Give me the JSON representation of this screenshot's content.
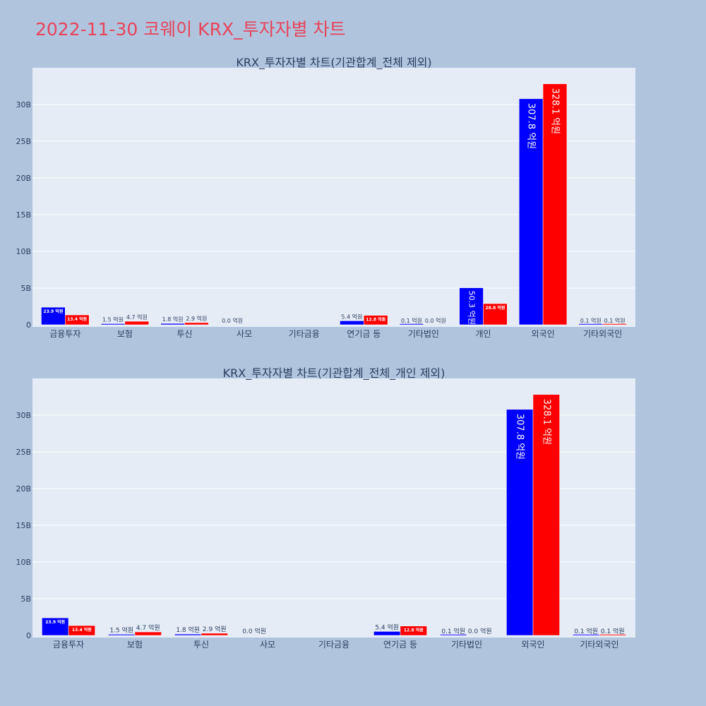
{
  "page": {
    "title": "2022-11-30 코웨이 KRX_투자자별 차트"
  },
  "chart_data": [
    {
      "type": "bar",
      "title": "KRX_투자자별 차트(기관합계_전체 제외)",
      "categories": [
        "금융투자",
        "보험",
        "투신",
        "사모",
        "기타금융",
        "연기금 등",
        "기타법인",
        "개인",
        "외국인",
        "기타외국인"
      ],
      "series": [
        {
          "color": "#0000ff",
          "values": [
            2.39,
            0.15,
            0.18,
            0.0,
            null,
            0.54,
            0.01,
            5.03,
            30.78,
            0.01
          ],
          "labels": [
            "23.9 억원",
            "1.5 억원",
            "1.8 억원",
            "0.0 억원",
            "",
            "5.4 억원",
            "0.1 억원",
            "50.3 억원",
            "307.8 억원",
            "0.1 억원"
          ]
        },
        {
          "color": "#ff0000",
          "values": [
            1.34,
            0.47,
            0.29,
            null,
            null,
            1.28,
            0.0,
            2.88,
            32.81,
            0.01
          ],
          "labels": [
            "13.4 억원",
            "4.7 억원",
            "2.9 억원",
            "",
            "",
            "12.8 억원",
            "0.0 억원",
            "28.8 억원",
            "328.1 억원",
            "0.1 억원"
          ]
        }
      ],
      "ylim": [
        0,
        34.6
      ],
      "yticks": [
        0,
        5,
        10,
        15,
        20,
        25,
        30
      ],
      "ytick_labels": [
        "0",
        "5B",
        "10B",
        "15B",
        "20B",
        "25B",
        "30B"
      ],
      "grid": true
    },
    {
      "type": "bar",
      "title": "KRX_투자자별 차트(기관합계_전체_개인 제외)",
      "categories": [
        "금융투자",
        "보험",
        "투신",
        "사모",
        "기타금융",
        "연기금 등",
        "기타법인",
        "외국인",
        "기타외국인"
      ],
      "series": [
        {
          "color": "#0000ff",
          "values": [
            2.39,
            0.15,
            0.18,
            0.0,
            null,
            0.54,
            0.01,
            30.78,
            0.01
          ],
          "labels": [
            "23.9 억원",
            "1.5 억원",
            "1.8 억원",
            "0.0 억원",
            "",
            "5.4 억원",
            "0.1 억원",
            "307.8 억원",
            "0.1 억원"
          ]
        },
        {
          "color": "#ff0000",
          "values": [
            1.34,
            0.47,
            0.29,
            null,
            null,
            1.28,
            0.0,
            32.81,
            0.01
          ],
          "labels": [
            "13.4 억원",
            "4.7 억원",
            "2.9 억원",
            "",
            "",
            "12.8 억원",
            "0.0 억원",
            "328.1 억원",
            "0.1 억원"
          ]
        }
      ],
      "ylim": [
        0,
        34.6
      ],
      "yticks": [
        0,
        5,
        10,
        15,
        20,
        25,
        30
      ],
      "ytick_labels": [
        "0",
        "5B",
        "10B",
        "15B",
        "20B",
        "25B",
        "30B"
      ],
      "grid": true
    }
  ]
}
